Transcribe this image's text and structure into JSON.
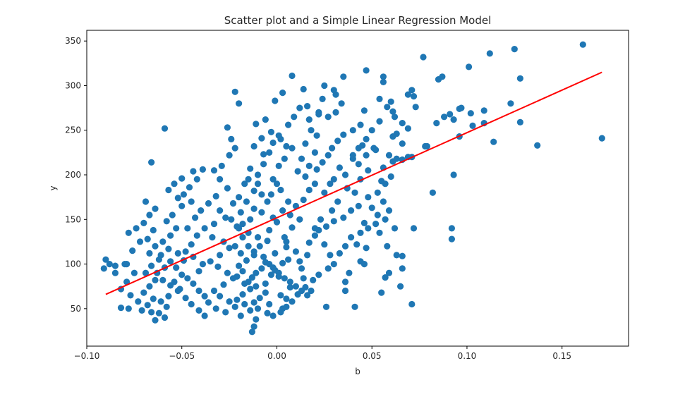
{
  "chart_data": {
    "type": "scatter",
    "title": "Scatter plot and a Simple Linear Regression Model",
    "xlabel": "b",
    "ylabel": "y",
    "xlim": [
      -0.1,
      0.185
    ],
    "ylim": [
      8,
      362
    ],
    "x_ticks": [
      {
        "value": -0.1,
        "label": "−0.10"
      },
      {
        "value": -0.05,
        "label": "−0.05"
      },
      {
        "value": 0.0,
        "label": "0.00"
      },
      {
        "value": 0.05,
        "label": "0.05"
      },
      {
        "value": 0.1,
        "label": "0.10"
      },
      {
        "value": 0.15,
        "label": "0.15"
      }
    ],
    "y_ticks": [
      {
        "value": 50,
        "label": "50"
      },
      {
        "value": 100,
        "label": "100"
      },
      {
        "value": 150,
        "label": "150"
      },
      {
        "value": 200,
        "label": "200"
      },
      {
        "value": 250,
        "label": "250"
      },
      {
        "value": 300,
        "label": "300"
      },
      {
        "value": 350,
        "label": "350"
      }
    ],
    "grid": false,
    "colors": {
      "points": "#1f77b4",
      "regression": "#ff0000"
    },
    "regression_line": {
      "x": [
        -0.09,
        0.171
      ],
      "y": [
        66,
        315
      ]
    },
    "points": [
      [
        0.161,
        346
      ],
      [
        0.125,
        341
      ],
      [
        0.112,
        336
      ],
      [
        0.077,
        332
      ],
      [
        0.101,
        321
      ],
      [
        0.087,
        310
      ],
      [
        0.085,
        307
      ],
      [
        0.128,
        308
      ],
      [
        0.008,
        311
      ],
      [
        0.047,
        317
      ],
      [
        0.056,
        310
      ],
      [
        0.056,
        304
      ],
      [
        0.069,
        290
      ],
      [
        0.071,
        295
      ],
      [
        0.073,
        276
      ],
      [
        0.123,
        280
      ],
      [
        0.097,
        275
      ],
      [
        0.091,
        268
      ],
      [
        0.102,
        269
      ],
      [
        0.109,
        258
      ],
      [
        0.128,
        259
      ],
      [
        0.137,
        233
      ],
      [
        0.114,
        237
      ],
      [
        0.096,
        243
      ],
      [
        0.171,
        241
      ],
      [
        0.093,
        200
      ],
      [
        0.082,
        180
      ],
      [
        0.092,
        140
      ],
      [
        0.092,
        128
      ],
      [
        0.071,
        55
      ],
      [
        0.069,
        220
      ],
      [
        0.061,
        215
      ],
      [
        0.063,
        218
      ],
      [
        0.061,
        243
      ],
      [
        0.063,
        246
      ],
      [
        0.066,
        235
      ],
      [
        0.061,
        271
      ],
      [
        0.066,
        258
      ],
      [
        0.069,
        252
      ],
      [
        0.072,
        288
      ],
      [
        0.079,
        232
      ],
      [
        0.063,
        110
      ],
      [
        0.066,
        109
      ],
      [
        0.062,
        140
      ],
      [
        0.072,
        140
      ],
      [
        0.066,
        95
      ],
      [
        0.059,
        90
      ],
      [
        0.057,
        85
      ],
      [
        0.065,
        75
      ],
      [
        0.055,
        68
      ],
      [
        0.052,
        145
      ],
      [
        0.053,
        155
      ],
      [
        0.05,
        163
      ],
      [
        0.046,
        146
      ],
      [
        0.044,
        103
      ],
      [
        0.038,
        90
      ],
      [
        0.036,
        80
      ],
      [
        0.036,
        70
      ],
      [
        0.041,
        52
      ],
      [
        0.046,
        100
      ],
      [
        0.055,
        193
      ],
      [
        0.051,
        230
      ],
      [
        0.046,
        272
      ],
      [
        0.054,
        285
      ],
      [
        0.058,
        276
      ],
      [
        0.06,
        282
      ],
      [
        0.044,
        256
      ],
      [
        0.04,
        250
      ],
      [
        0.035,
        245
      ],
      [
        0.033,
        208
      ],
      [
        0.036,
        200
      ],
      [
        0.03,
        195
      ],
      [
        0.028,
        190
      ],
      [
        0.025,
        180
      ],
      [
        0.032,
        170
      ],
      [
        0.029,
        160
      ],
      [
        0.026,
        142
      ],
      [
        0.022,
        138
      ],
      [
        0.02,
        132
      ],
      [
        0.017,
        124
      ],
      [
        0.025,
        122
      ],
      [
        0.028,
        110
      ],
      [
        0.012,
        103
      ],
      [
        0.016,
        110
      ],
      [
        0.013,
        95
      ],
      [
        0.014,
        84
      ],
      [
        0.018,
        70
      ],
      [
        0.026,
        52
      ],
      [
        0.01,
        114
      ],
      [
        0.006,
        105
      ],
      [
        0.005,
        119
      ],
      [
        0.004,
        130
      ],
      [
        0.008,
        141
      ],
      [
        0.012,
        150
      ],
      [
        0.007,
        155
      ],
      [
        0.01,
        165
      ],
      [
        0.014,
        172
      ],
      [
        0.017,
        183
      ],
      [
        0.02,
        190
      ],
      [
        0.015,
        198
      ],
      [
        0.011,
        204
      ],
      [
        0.017,
        210
      ],
      [
        0.013,
        218
      ],
      [
        0.02,
        225
      ],
      [
        0.015,
        235
      ],
      [
        0.021,
        244
      ],
      [
        0.018,
        250
      ],
      [
        0.017,
        262
      ],
      [
        0.022,
        270
      ],
      [
        0.016,
        277
      ],
      [
        0.024,
        285
      ],
      [
        0.03,
        295
      ],
      [
        0.025,
        300
      ],
      [
        0.035,
        310
      ],
      [
        0.014,
        296
      ],
      [
        0.003,
        292
      ],
      [
        -0.001,
        283
      ],
      [
        -0.011,
        257
      ],
      [
        -0.006,
        262
      ],
      [
        -0.003,
        248
      ],
      [
        -0.008,
        241
      ],
      [
        -0.012,
        232
      ],
      [
        -0.007,
        223
      ],
      [
        -0.014,
        207
      ],
      [
        -0.01,
        200
      ],
      [
        -0.015,
        195
      ],
      [
        -0.01,
        190
      ],
      [
        -0.012,
        182
      ],
      [
        -0.008,
        178
      ],
      [
        -0.016,
        170
      ],
      [
        -0.012,
        162
      ],
      [
        -0.008,
        158
      ],
      [
        -0.014,
        150
      ],
      [
        -0.018,
        145
      ],
      [
        -0.02,
        140
      ],
      [
        -0.015,
        135
      ],
      [
        -0.01,
        130
      ],
      [
        -0.005,
        126
      ],
      [
        -0.009,
        120
      ],
      [
        -0.012,
        114
      ],
      [
        -0.007,
        108
      ],
      [
        -0.004,
        100
      ],
      [
        -0.008,
        95
      ],
      [
        -0.011,
        90
      ],
      [
        -0.013,
        85
      ],
      [
        -0.015,
        80
      ],
      [
        -0.011,
        75
      ],
      [
        -0.006,
        68
      ],
      [
        -0.009,
        62
      ],
      [
        -0.012,
        57
      ],
      [
        -0.01,
        50
      ],
      [
        -0.005,
        45
      ],
      [
        -0.011,
        38
      ],
      [
        -0.012,
        30
      ],
      [
        -0.013,
        24
      ],
      [
        0.003,
        50
      ],
      [
        0.005,
        61
      ],
      [
        0.002,
        65
      ],
      [
        0.007,
        74
      ],
      [
        0.001,
        86
      ],
      [
        -0.001,
        93
      ],
      [
        0.003,
        101
      ],
      [
        0.005,
        125
      ],
      [
        0.0,
        147
      ],
      [
        0.003,
        160
      ],
      [
        0.006,
        170
      ],
      [
        0.002,
        183
      ],
      [
        -0.002,
        195
      ],
      [
        0.001,
        210
      ],
      [
        0.004,
        218
      ],
      [
        0.008,
        230
      ],
      [
        0.002,
        240
      ],
      [
        0.006,
        256
      ],
      [
        0.009,
        265
      ],
      [
        0.012,
        275
      ],
      [
        -0.02,
        280
      ],
      [
        -0.022,
        293
      ],
      [
        -0.026,
        253
      ],
      [
        -0.024,
        240
      ],
      [
        -0.022,
        230
      ],
      [
        -0.025,
        222
      ],
      [
        -0.029,
        210
      ],
      [
        -0.033,
        205
      ],
      [
        -0.03,
        195
      ],
      [
        -0.026,
        185
      ],
      [
        -0.032,
        176
      ],
      [
        -0.036,
        168
      ],
      [
        -0.03,
        160
      ],
      [
        -0.027,
        152
      ],
      [
        -0.033,
        145
      ],
      [
        -0.038,
        140
      ],
      [
        -0.034,
        130
      ],
      [
        -0.028,
        125
      ],
      [
        -0.025,
        118
      ],
      [
        -0.03,
        110
      ],
      [
        -0.035,
        103
      ],
      [
        -0.031,
        97
      ],
      [
        -0.026,
        90
      ],
      [
        -0.023,
        84
      ],
      [
        -0.028,
        77
      ],
      [
        -0.033,
        70
      ],
      [
        -0.03,
        64
      ],
      [
        -0.025,
        58
      ],
      [
        -0.022,
        52
      ],
      [
        -0.027,
        46
      ],
      [
        -0.032,
        50
      ],
      [
        -0.036,
        57
      ],
      [
        -0.038,
        64
      ],
      [
        -0.041,
        70
      ],
      [
        -0.044,
        78
      ],
      [
        -0.047,
        84
      ],
      [
        -0.041,
        92
      ],
      [
        -0.039,
        100
      ],
      [
        -0.044,
        108
      ],
      [
        -0.048,
        114
      ],
      [
        -0.045,
        122
      ],
      [
        -0.042,
        132
      ],
      [
        -0.047,
        140
      ],
      [
        -0.043,
        152
      ],
      [
        -0.04,
        160
      ],
      [
        -0.045,
        170
      ],
      [
        -0.049,
        178
      ],
      [
        -0.046,
        186
      ],
      [
        -0.042,
        195
      ],
      [
        -0.039,
        206
      ],
      [
        -0.044,
        204
      ],
      [
        -0.05,
        196
      ],
      [
        -0.054,
        190
      ],
      [
        -0.057,
        183
      ],
      [
        -0.052,
        174
      ],
      [
        -0.05,
        165
      ],
      [
        -0.055,
        155
      ],
      [
        -0.058,
        148
      ],
      [
        -0.053,
        140
      ],
      [
        -0.056,
        132
      ],
      [
        -0.06,
        125
      ],
      [
        -0.057,
        117
      ],
      [
        -0.061,
        110
      ],
      [
        -0.056,
        103
      ],
      [
        -0.059,
        96
      ],
      [
        -0.063,
        90
      ],
      [
        -0.06,
        82
      ],
      [
        -0.056,
        76
      ],
      [
        -0.052,
        70
      ],
      [
        -0.057,
        64
      ],
      [
        -0.061,
        58
      ],
      [
        -0.058,
        52
      ],
      [
        -0.062,
        45
      ],
      [
        -0.059,
        40
      ],
      [
        -0.064,
        37
      ],
      [
        -0.066,
        46
      ],
      [
        -0.068,
        54
      ],
      [
        -0.065,
        61
      ],
      [
        -0.07,
        68
      ],
      [
        -0.067,
        75
      ],
      [
        -0.064,
        82
      ],
      [
        -0.069,
        90
      ],
      [
        -0.066,
        98
      ],
      [
        -0.062,
        105
      ],
      [
        -0.067,
        112
      ],
      [
        -0.064,
        120
      ],
      [
        -0.068,
        128
      ],
      [
        -0.065,
        138
      ],
      [
        -0.07,
        146
      ],
      [
        -0.067,
        155
      ],
      [
        -0.064,
        162
      ],
      [
        -0.069,
        170
      ],
      [
        -0.066,
        214
      ],
      [
        -0.059,
        252
      ],
      [
        -0.074,
        140
      ],
      [
        -0.078,
        135
      ],
      [
        -0.072,
        125
      ],
      [
        -0.076,
        115
      ],
      [
        -0.08,
        100
      ],
      [
        -0.075,
        90
      ],
      [
        -0.079,
        80
      ],
      [
        -0.082,
        72
      ],
      [
        -0.077,
        65
      ],
      [
        -0.073,
        58
      ],
      [
        -0.078,
        50
      ],
      [
        -0.071,
        48
      ],
      [
        -0.082,
        51
      ],
      [
        -0.085,
        90
      ],
      [
        -0.088,
        100
      ],
      [
        -0.091,
        95
      ],
      [
        -0.09,
        105
      ],
      [
        -0.085,
        98
      ],
      [
        -0.079,
        100
      ],
      [
        0.02,
        140
      ],
      [
        0.023,
        150
      ],
      [
        0.03,
        148
      ],
      [
        0.035,
        152
      ],
      [
        0.039,
        160
      ],
      [
        0.043,
        165
      ],
      [
        0.048,
        175
      ],
      [
        0.041,
        180
      ],
      [
        0.037,
        185
      ],
      [
        0.044,
        195
      ],
      [
        0.048,
        205
      ],
      [
        0.043,
        212
      ],
      [
        0.04,
        218
      ],
      [
        0.047,
        222
      ],
      [
        0.052,
        228
      ],
      [
        0.045,
        233
      ],
      [
        0.039,
        130
      ],
      [
        0.042,
        122
      ],
      [
        0.047,
        118
      ],
      [
        0.044,
        135
      ],
      [
        0.048,
        140
      ],
      [
        0.036,
        120
      ],
      [
        0.033,
        112
      ],
      [
        0.03,
        100
      ],
      [
        0.027,
        95
      ],
      [
        0.022,
        88
      ],
      [
        0.019,
        82
      ],
      [
        0.015,
        74
      ],
      [
        0.011,
        66
      ],
      [
        0.008,
        58
      ],
      [
        0.005,
        52
      ],
      [
        0.002,
        46
      ],
      [
        -0.002,
        42
      ],
      [
        -0.004,
        55
      ],
      [
        -0.006,
        78
      ],
      [
        -0.003,
        88
      ],
      [
        -0.001,
        112
      ],
      [
        -0.004,
        138
      ],
      [
        -0.002,
        152
      ],
      [
        -0.005,
        170
      ],
      [
        -0.003,
        178
      ],
      [
        0.0,
        190
      ],
      [
        -0.007,
        212
      ],
      [
        -0.004,
        225
      ],
      [
        -0.002,
        236
      ],
      [
        0.001,
        244
      ],
      [
        0.005,
        232
      ],
      [
        -0.017,
        190
      ],
      [
        -0.02,
        175
      ],
      [
        -0.023,
        168
      ],
      [
        -0.019,
        158
      ],
      [
        -0.024,
        150
      ],
      [
        -0.021,
        142
      ],
      [
        -0.018,
        130
      ],
      [
        -0.022,
        120
      ],
      [
        -0.019,
        112
      ],
      [
        -0.016,
        104
      ],
      [
        -0.02,
        98
      ],
      [
        -0.018,
        92
      ],
      [
        -0.021,
        86
      ],
      [
        -0.017,
        78
      ],
      [
        -0.014,
        72
      ],
      [
        -0.018,
        66
      ],
      [
        -0.021,
        60
      ],
      [
        -0.017,
        55
      ],
      [
        -0.014,
        48
      ],
      [
        -0.019,
        42
      ],
      [
        -0.038,
        42
      ],
      [
        -0.041,
        48
      ],
      [
        -0.045,
        55
      ],
      [
        -0.048,
        62
      ],
      [
        -0.051,
        72
      ],
      [
        -0.054,
        80
      ],
      [
        -0.05,
        88
      ],
      [
        -0.053,
        96
      ],
      [
        -0.049,
        104
      ],
      [
        -0.052,
        112
      ],
      [
        0.058,
        120
      ],
      [
        0.054,
        135
      ],
      [
        0.057,
        150
      ],
      [
        0.059,
        160
      ],
      [
        0.056,
        170
      ],
      [
        0.053,
        180
      ],
      [
        0.057,
        190
      ],
      [
        0.06,
        198
      ],
      [
        0.056,
        208
      ],
      [
        0.059,
        222
      ],
      [
        0.066,
        217
      ],
      [
        0.071,
        220
      ],
      [
        0.078,
        232
      ],
      [
        0.084,
        258
      ],
      [
        0.088,
        265
      ],
      [
        0.093,
        262
      ],
      [
        0.096,
        274
      ],
      [
        0.103,
        255
      ],
      [
        0.109,
        272
      ],
      [
        0.062,
        265
      ],
      [
        0.054,
        260
      ],
      [
        0.05,
        250
      ],
      [
        0.047,
        240
      ],
      [
        0.043,
        230
      ],
      [
        0.04,
        222
      ],
      [
        0.032,
        238
      ],
      [
        0.029,
        230
      ],
      [
        0.027,
        222
      ],
      [
        0.024,
        214
      ],
      [
        0.021,
        206
      ],
      [
        0.031,
        270
      ],
      [
        0.027,
        265
      ],
      [
        0.034,
        280
      ],
      [
        0.031,
        290
      ],
      [
        0.022,
        268
      ],
      [
        -0.015,
        120
      ],
      [
        -0.012,
        110
      ],
      [
        -0.006,
        102
      ],
      [
        -0.002,
        96
      ],
      [
        0.001,
        90
      ],
      [
        0.004,
        84
      ],
      [
        0.007,
        80
      ],
      [
        0.01,
        75
      ],
      [
        0.013,
        70
      ],
      [
        0.016,
        65
      ]
    ]
  }
}
